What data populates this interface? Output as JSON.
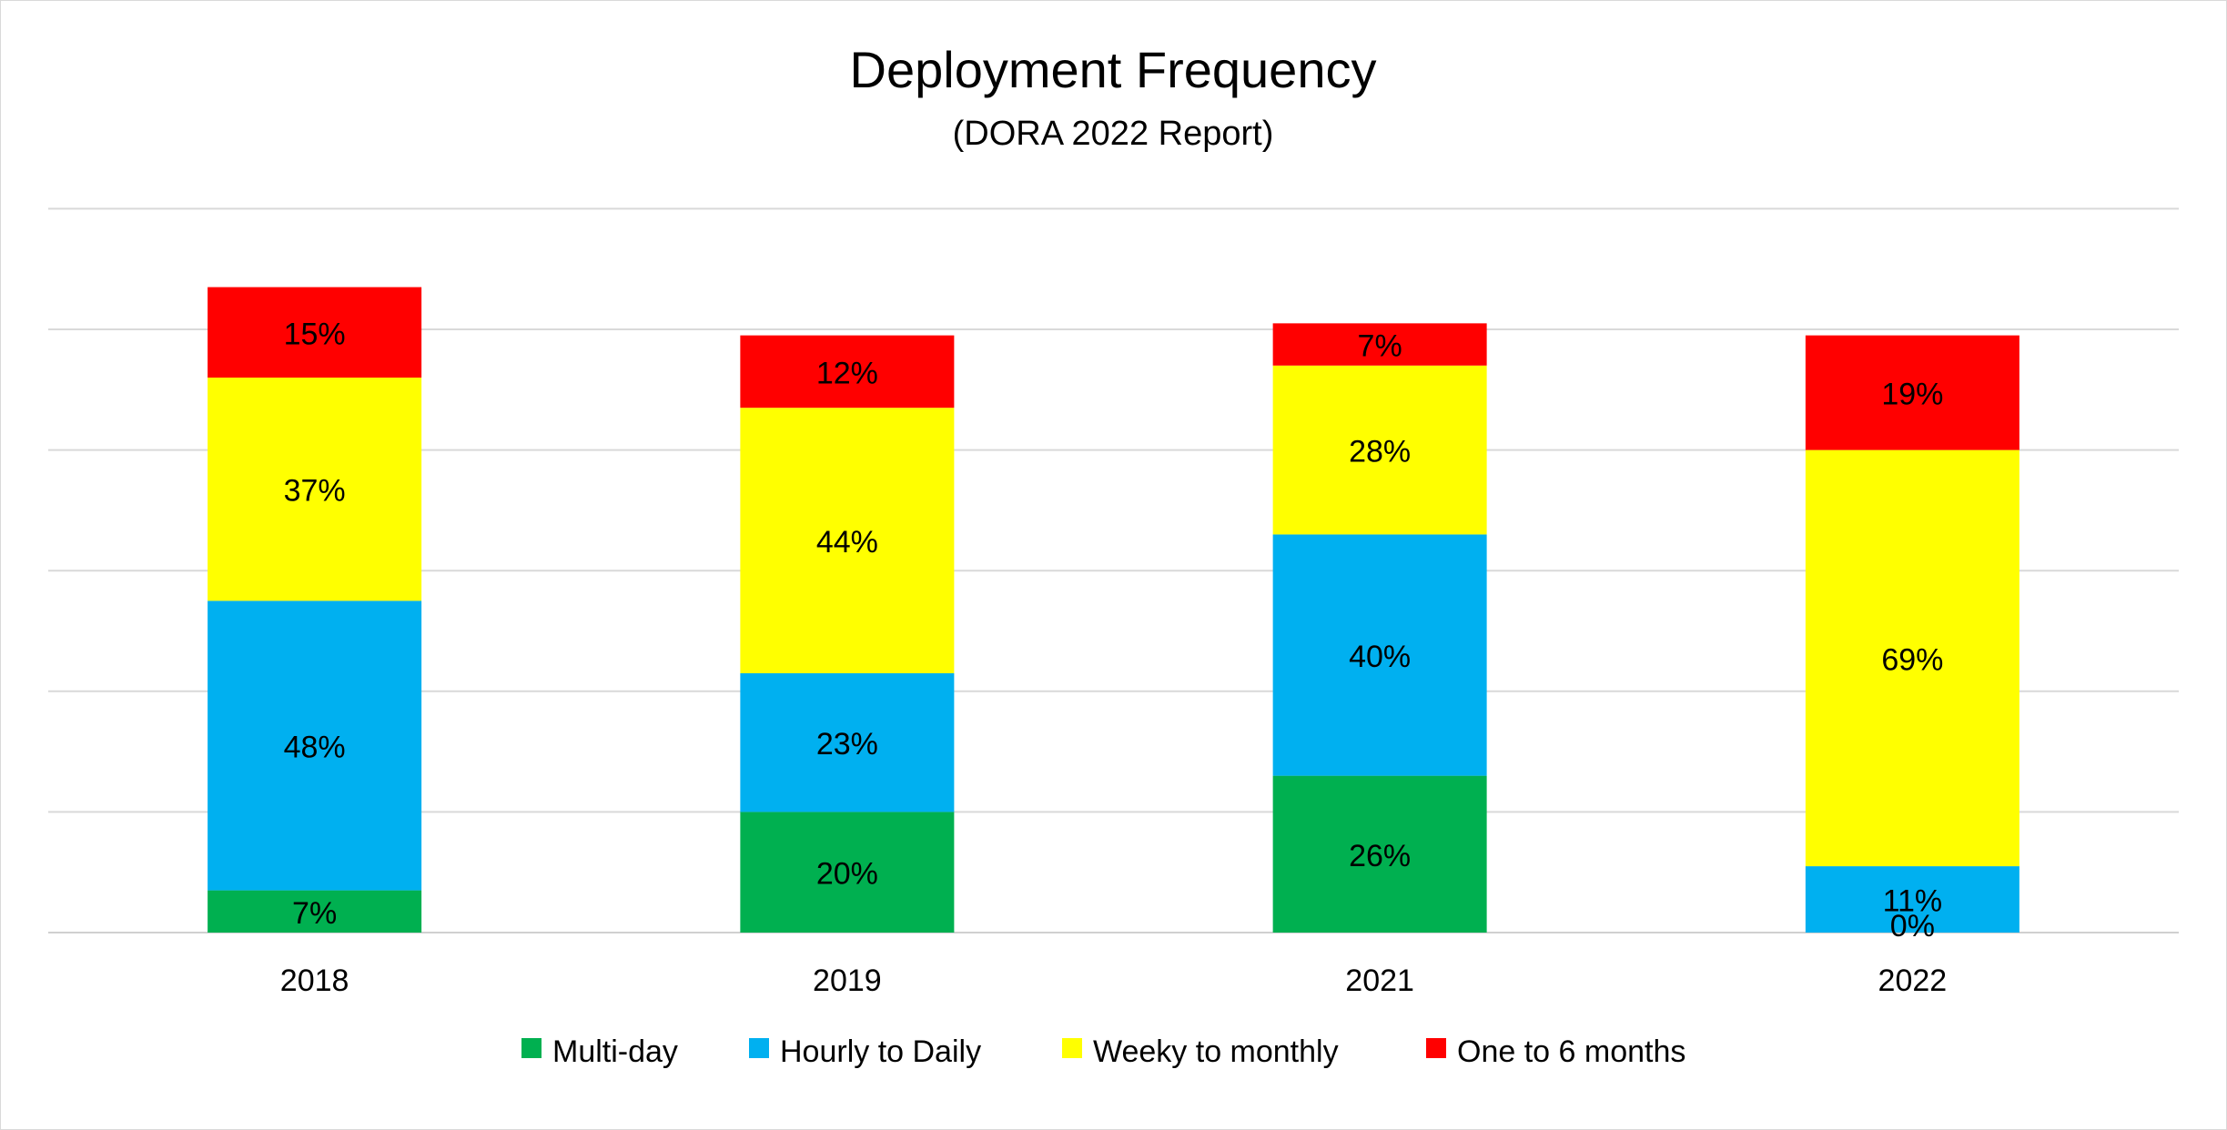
{
  "chart_data": {
    "type": "bar",
    "stacked": true,
    "title": "Deployment Frequency",
    "subtitle": "(DORA 2022 Report)",
    "categories": [
      "2018",
      "2019",
      "2021",
      "2022"
    ],
    "series": [
      {
        "name": "Multi-day",
        "color": "#00b050",
        "values": [
          7,
          20,
          26,
          0
        ]
      },
      {
        "name": "Hourly to Daily",
        "color": "#00b0f0",
        "values": [
          48,
          23,
          40,
          11
        ]
      },
      {
        "name": "Weeky to monthly",
        "color": "#ffff00",
        "values": [
          37,
          44,
          28,
          69
        ]
      },
      {
        "name": "One to 6 months",
        "color": "#ff0000",
        "values": [
          15,
          12,
          7,
          19
        ]
      }
    ],
    "value_format": "percent",
    "ylim": [
      0,
      120
    ],
    "y_gridline_step": 20,
    "y_axis_labels_shown": false,
    "grid": true,
    "legend_position": "bottom"
  }
}
